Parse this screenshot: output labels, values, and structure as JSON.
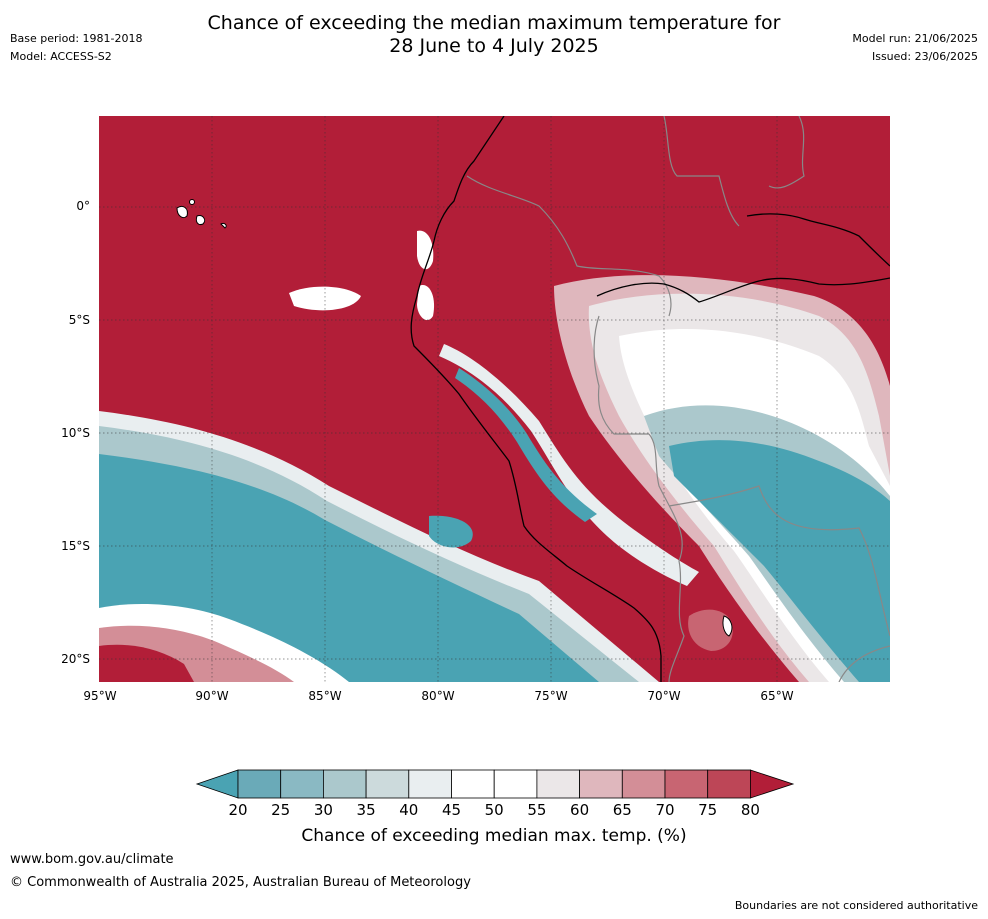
{
  "title_line1": "Chance of exceeding the median maximum temperature for",
  "title_line2": "28 June to 4 July 2025",
  "meta_left": {
    "base_period": "Base period: 1981-2018",
    "model": "Model: ACCESS-S2"
  },
  "meta_right": {
    "model_run": "Model run: 21/06/2025",
    "issued": "Issued: 23/06/2025"
  },
  "map": {
    "lat_labels": [
      "0°",
      "5°S",
      "10°S",
      "15°S",
      "20°S"
    ],
    "lon_labels": [
      "95°W",
      "90°W",
      "85°W",
      "80°W",
      "75°W",
      "70°W",
      "65°W"
    ]
  },
  "colorbar": {
    "ticks": [
      "20",
      "25",
      "30",
      "35",
      "40",
      "45",
      "50",
      "55",
      "60",
      "65",
      "70",
      "75",
      "80"
    ],
    "colors": [
      "#4aa3b3",
      "#6aaab8",
      "#8ab9c3",
      "#abc8cc",
      "#ccdadc",
      "#e9eef0",
      "#ffffff",
      "#ffffff",
      "#ebe7e8",
      "#dfb7bd",
      "#d38e97",
      "#c86572",
      "#bd4657",
      "#b21e38"
    ],
    "label": "Chance of exceeding median max. temp. (%)"
  },
  "footer": {
    "url": "www.bom.gov.au/climate",
    "copyright": "© Commonwealth of Australia 2025, Australian Bureau of Meteorology",
    "note": "Boundaries are not considered authoritative"
  }
}
